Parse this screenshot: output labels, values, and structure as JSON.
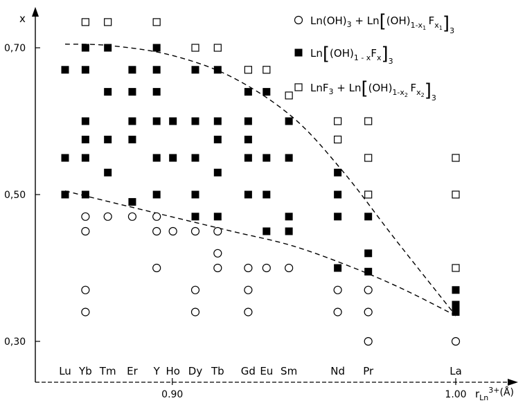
{
  "chart_data": {
    "type": "scatter",
    "ylabel": "x",
    "xlabel_main": "r",
    "xlabel_sub": "Ln",
    "xlabel_sup": "3+",
    "xlabel_unit": "(Å)",
    "xlim": [
      0.848,
      1.0
    ],
    "ylim": [
      0.25,
      0.74
    ],
    "yticks": [
      {
        "value": 0.3,
        "label": "0,30"
      },
      {
        "value": 0.5,
        "label": "0,50"
      },
      {
        "value": 0.7,
        "label": "0,70"
      }
    ],
    "xticks": [
      {
        "value": 0.9,
        "label": "0.90"
      },
      {
        "value": 1.0,
        "label": "1.00"
      }
    ],
    "elements": [
      {
        "name": "Lu",
        "r": 0.848
      },
      {
        "name": "Yb",
        "r": 0.858
      },
      {
        "name": "Tm",
        "r": 0.869
      },
      {
        "name": "Er",
        "r": 0.881
      },
      {
        "name": "Y",
        "r": 0.893
      },
      {
        "name": "Ho",
        "r": 0.901
      },
      {
        "name": "Dy",
        "r": 0.912
      },
      {
        "name": "Tb",
        "r": 0.923
      },
      {
        "name": "Gd",
        "r": 0.938
      },
      {
        "name": "Eu",
        "r": 0.947
      },
      {
        "name": "Sm",
        "r": 0.958
      },
      {
        "name": "Nd",
        "r": 0.982
      },
      {
        "name": "Pr",
        "r": 0.997
      },
      {
        "name": "La",
        "r": 1.04
      }
    ],
    "legend_position": "top-right",
    "series": [
      {
        "key": "hydroxide",
        "marker": "open-circle",
        "legend": {
          "a": "Ln(OH)",
          "a_sub": "3",
          "b": " + Ln",
          "c": "(OH)",
          "c_sub": "1-x",
          "c_sub2": "1",
          "d": "F",
          "d_sub": "x",
          "d_sub2": "1",
          "e": "3"
        },
        "points": [
          [
            "Yb",
            0.47
          ],
          [
            "Yb",
            0.45
          ],
          [
            "Yb",
            0.37
          ],
          [
            "Yb",
            0.34
          ],
          [
            "Tm",
            0.47
          ],
          [
            "Er",
            0.47
          ],
          [
            "Y",
            0.47
          ],
          [
            "Y",
            0.45
          ],
          [
            "Y",
            0.4
          ],
          [
            "Ho",
            0.45
          ],
          [
            "Dy",
            0.45
          ],
          [
            "Dy",
            0.37
          ],
          [
            "Dy",
            0.34
          ],
          [
            "Tb",
            0.45
          ],
          [
            "Tb",
            0.42
          ],
          [
            "Tb",
            0.4
          ],
          [
            "Gd",
            0.4
          ],
          [
            "Gd",
            0.37
          ],
          [
            "Gd",
            0.34
          ],
          [
            "Eu",
            0.4
          ],
          [
            "Sm",
            0.4
          ],
          [
            "Nd",
            0.37
          ],
          [
            "Nd",
            0.34
          ],
          [
            "Pr",
            0.37
          ],
          [
            "Pr",
            0.34
          ],
          [
            "Pr",
            0.3
          ],
          [
            "La",
            0.3
          ]
        ]
      },
      {
        "key": "solid-solution",
        "marker": "filled-square",
        "legend": {
          "a": "Ln",
          "c": "(OH)",
          "c_sub": "1 - x",
          "d": "F",
          "d_sub": "x",
          "e": "3"
        },
        "points": [
          [
            "Lu",
            0.67
          ],
          [
            "Lu",
            0.55
          ],
          [
            "Lu",
            0.5
          ],
          [
            "Yb",
            0.7
          ],
          [
            "Yb",
            0.67
          ],
          [
            "Yb",
            0.6
          ],
          [
            "Yb",
            0.575
          ],
          [
            "Yb",
            0.55
          ],
          [
            "Yb",
            0.5
          ],
          [
            "Tm",
            0.7
          ],
          [
            "Tm",
            0.64
          ],
          [
            "Tm",
            0.575
          ],
          [
            "Tm",
            0.53
          ],
          [
            "Er",
            0.67
          ],
          [
            "Er",
            0.64
          ],
          [
            "Er",
            0.6
          ],
          [
            "Er",
            0.575
          ],
          [
            "Er",
            0.49
          ],
          [
            "Y",
            0.7
          ],
          [
            "Y",
            0.67
          ],
          [
            "Y",
            0.64
          ],
          [
            "Y",
            0.6
          ],
          [
            "Y",
            0.55
          ],
          [
            "Y",
            0.5
          ],
          [
            "Ho",
            0.6
          ],
          [
            "Ho",
            0.55
          ],
          [
            "Dy",
            0.67
          ],
          [
            "Dy",
            0.6
          ],
          [
            "Dy",
            0.55
          ],
          [
            "Dy",
            0.5
          ],
          [
            "Dy",
            0.47
          ],
          [
            "Tb",
            0.67
          ],
          [
            "Tb",
            0.6
          ],
          [
            "Tb",
            0.575
          ],
          [
            "Tb",
            0.53
          ],
          [
            "Tb",
            0.47
          ],
          [
            "Gd",
            0.64
          ],
          [
            "Gd",
            0.6
          ],
          [
            "Gd",
            0.575
          ],
          [
            "Gd",
            0.55
          ],
          [
            "Gd",
            0.5
          ],
          [
            "Eu",
            0.64
          ],
          [
            "Eu",
            0.55
          ],
          [
            "Eu",
            0.5
          ],
          [
            "Eu",
            0.45
          ],
          [
            "Sm",
            0.6
          ],
          [
            "Sm",
            0.55
          ],
          [
            "Sm",
            0.47
          ],
          [
            "Sm",
            0.45
          ],
          [
            "Nd",
            0.53
          ],
          [
            "Nd",
            0.5
          ],
          [
            "Nd",
            0.47
          ],
          [
            "Nd",
            0.4
          ],
          [
            "Pr",
            0.47
          ],
          [
            "Pr",
            0.42
          ],
          [
            "Pr",
            0.395
          ],
          [
            "La",
            0.37
          ],
          [
            "La",
            0.35
          ],
          [
            "La",
            0.34
          ]
        ]
      },
      {
        "key": "fluoride",
        "marker": "open-square",
        "legend": {
          "a": "LnF",
          "a_sub": "3",
          "b": " + Ln",
          "c": "(OH)",
          "c_sub": "1-x",
          "c_sub2": "2",
          "d": "F",
          "d_sub": "x",
          "d_sub2": "2",
          "e": "3"
        },
        "points": [
          [
            "Yb",
            0.735
          ],
          [
            "Tm",
            0.735
          ],
          [
            "Y",
            0.735
          ],
          [
            "Dy",
            0.7
          ],
          [
            "Tb",
            0.7
          ],
          [
            "Gd",
            0.67
          ],
          [
            "Eu",
            0.67
          ],
          [
            "Sm",
            0.635
          ],
          [
            "Nd",
            0.6
          ],
          [
            "Nd",
            0.575
          ],
          [
            "Pr",
            0.6
          ],
          [
            "Pr",
            0.55
          ],
          [
            "Pr",
            0.5
          ],
          [
            "La",
            0.55
          ],
          [
            "La",
            0.5
          ],
          [
            "La",
            0.4
          ]
        ]
      }
    ],
    "boundaries": [
      {
        "name": "upper",
        "points": [
          [
            0.848,
            0.705
          ],
          [
            0.87,
            0.703
          ],
          [
            0.9,
            0.69
          ],
          [
            0.93,
            0.66
          ],
          [
            0.96,
            0.605
          ],
          [
            0.985,
            0.53
          ],
          [
            1.01,
            0.44
          ],
          [
            1.04,
            0.335
          ]
        ]
      },
      {
        "name": "lower",
        "points": [
          [
            0.848,
            0.505
          ],
          [
            0.87,
            0.49
          ],
          [
            0.9,
            0.47
          ],
          [
            0.93,
            0.45
          ],
          [
            0.96,
            0.43
          ],
          [
            0.99,
            0.4
          ],
          [
            1.015,
            0.37
          ],
          [
            1.04,
            0.335
          ]
        ]
      }
    ]
  }
}
